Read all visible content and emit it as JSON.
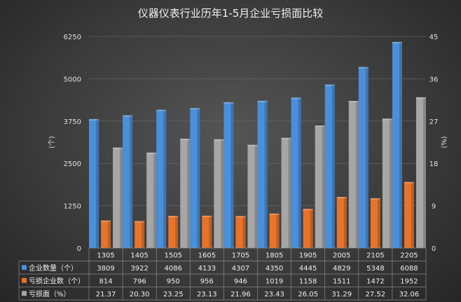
{
  "chart_data": {
    "type": "bar",
    "title": "仪器仪表行业历年1-5月企业亏损面比较",
    "categories": [
      "1305",
      "1405",
      "1505",
      "1605",
      "1705",
      "1805",
      "1905",
      "2005",
      "2105",
      "2205"
    ],
    "series": [
      {
        "name": "企业数量（个）",
        "values": [
          3809,
          3922,
          4086,
          4133,
          4307,
          4350,
          4445,
          4829,
          5348,
          6088
        ],
        "axis": "left",
        "color": "#4a8fd9",
        "display": [
          "3809",
          "3922",
          "4086",
          "4133",
          "4307",
          "4350",
          "4445",
          "4829",
          "5348",
          "6088"
        ]
      },
      {
        "name": "亏损企业数（个）",
        "values": [
          814,
          796,
          950,
          956,
          946,
          1019,
          1158,
          1511,
          1472,
          1952
        ],
        "axis": "left",
        "color": "#e8732a",
        "display": [
          "814",
          "796",
          "950",
          "956",
          "946",
          "1019",
          "1158",
          "1511",
          "1472",
          "1952"
        ]
      },
      {
        "name": "亏损面（%）",
        "values": [
          21.37,
          20.3,
          23.25,
          23.13,
          21.96,
          23.43,
          26.05,
          31.29,
          27.52,
          32.06
        ],
        "axis": "right",
        "color": "#a6a6a6",
        "display": [
          "21.37",
          "20.30",
          "23.25",
          "23.13",
          "21.96",
          "23.43",
          "26.05",
          "31.29",
          "27.52",
          "32.06"
        ]
      }
    ],
    "y_left": {
      "label": "(个)",
      "ylim": [
        0,
        6250
      ],
      "ticks": [
        "0",
        "1250",
        "2500",
        "3750",
        "5000",
        "6250"
      ]
    },
    "y_right": {
      "label": "(%)",
      "ylim": [
        0,
        45
      ],
      "ticks": [
        "0",
        "9",
        "18",
        "27",
        "36",
        "45"
      ]
    },
    "data_table": true,
    "grid": true
  }
}
